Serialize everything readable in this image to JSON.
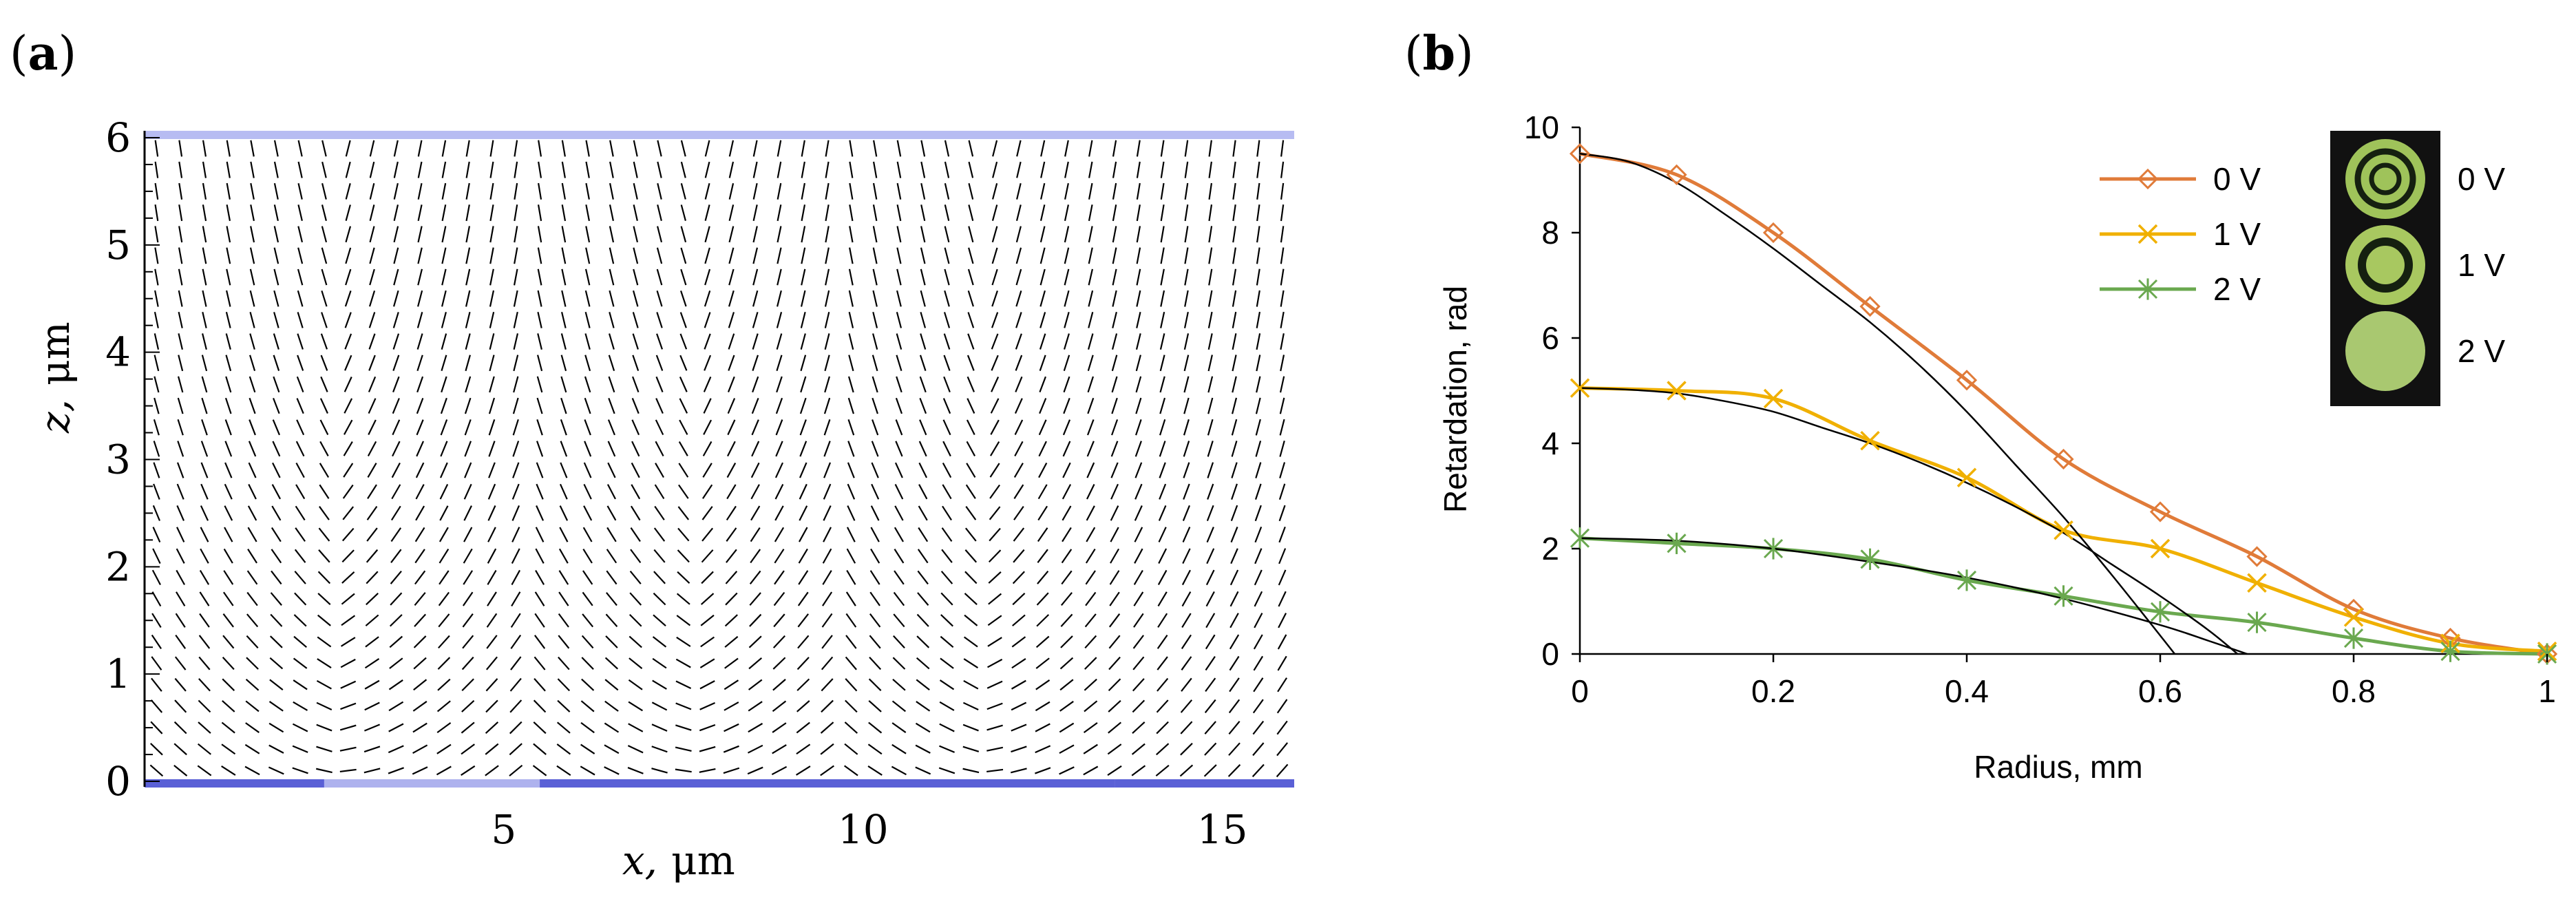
{
  "panel_a": {
    "label": "a"
  },
  "panel_b": {
    "label": "b"
  },
  "chart_data": [
    {
      "type": "vector-field",
      "title": "",
      "xlabel_var": "x,",
      "xlabel_unit": "μm",
      "ylabel_var": "z,",
      "ylabel_unit": "μm",
      "xlim": [
        0,
        16
      ],
      "ylim": [
        0,
        6
      ],
      "x_ticks": [
        {
          "value": 5,
          "label": "5"
        },
        {
          "value": 10,
          "label": "10"
        },
        {
          "value": 15,
          "label": "15"
        }
      ],
      "y_ticks": [
        {
          "value": 0,
          "label": "0"
        },
        {
          "value": 1,
          "label": "1"
        },
        {
          "value": 2,
          "label": "2"
        },
        {
          "value": 3,
          "label": "3"
        },
        {
          "value": 4,
          "label": "4"
        },
        {
          "value": 5,
          "label": "5"
        },
        {
          "value": 6,
          "label": "6"
        }
      ],
      "field": {
        "description": "director orientation field (line segments)",
        "columns": 48,
        "rows": 30,
        "defect_positions_x": [
          2.8,
          7.6,
          11.8
        ],
        "period_x": 8
      },
      "top_electrode_color": "#b7bcf2",
      "bottom_electrode_segments": [
        {
          "x0": 0,
          "x1": 2.5,
          "color": "#5a60d6"
        },
        {
          "x0": 2.5,
          "x1": 5.5,
          "color": "#aeb2ee"
        },
        {
          "x0": 5.5,
          "x1": 13.5,
          "color": "#5a60d6"
        },
        {
          "x0": 13.5,
          "x1": 16,
          "color": "#5a60d6"
        }
      ]
    },
    {
      "type": "line",
      "title": "",
      "xlabel": "Radius, mm",
      "ylabel": "Retardation, rad",
      "xlim": [
        0,
        1
      ],
      "ylim": [
        0,
        10
      ],
      "x_ticks": [
        {
          "value": 0,
          "label": "0"
        },
        {
          "value": 0.2,
          "label": "0.2"
        },
        {
          "value": 0.4,
          "label": "0.4"
        },
        {
          "value": 0.6,
          "label": "0.6"
        },
        {
          "value": 0.8,
          "label": "0.8"
        },
        {
          "value": 1,
          "label": "1"
        }
      ],
      "y_ticks": [
        {
          "value": 0,
          "label": "0"
        },
        {
          "value": 2,
          "label": "2"
        },
        {
          "value": 4,
          "label": "4"
        },
        {
          "value": 6,
          "label": "6"
        },
        {
          "value": 8,
          "label": "8"
        },
        {
          "value": 10,
          "label": "10"
        }
      ],
      "legend_position": "top-right",
      "series": [
        {
          "name": "0 V",
          "color": "#e07b39",
          "marker": "diamond",
          "x": [
            0,
            0.1,
            0.2,
            0.3,
            0.4,
            0.5,
            0.6,
            0.7,
            0.8,
            0.9,
            1.0
          ],
          "values": [
            9.5,
            9.1,
            8.0,
            6.6,
            5.2,
            3.7,
            2.7,
            1.85,
            0.85,
            0.3,
            0.0
          ]
        },
        {
          "name": "1 V",
          "color": "#f0b000",
          "marker": "x",
          "x": [
            0,
            0.1,
            0.2,
            0.3,
            0.4,
            0.5,
            0.6,
            0.7,
            0.8,
            0.9,
            1.0
          ],
          "values": [
            5.05,
            5.0,
            4.85,
            4.05,
            3.35,
            2.35,
            2.0,
            1.35,
            0.7,
            0.2,
            0.05
          ]
        },
        {
          "name": "2 V",
          "color": "#6aa84f",
          "marker": "asterisk",
          "x": [
            0,
            0.1,
            0.2,
            0.3,
            0.4,
            0.5,
            0.6,
            0.7,
            0.8,
            0.9,
            1.0
          ],
          "values": [
            2.2,
            2.1,
            2.0,
            1.8,
            1.4,
            1.1,
            0.8,
            0.6,
            0.3,
            0.05,
            0.0
          ]
        }
      ],
      "fit_curves": [
        {
          "name": "fit 0 V",
          "color": "#000000",
          "x": [
            0,
            0.05,
            0.1,
            0.15,
            0.2,
            0.25,
            0.3,
            0.35,
            0.4,
            0.45,
            0.5,
            0.55,
            0.6,
            0.615
          ],
          "values": [
            9.5,
            9.35,
            8.95,
            8.35,
            7.7,
            7.0,
            6.3,
            5.5,
            4.6,
            3.6,
            2.6,
            1.5,
            0.35,
            0.0
          ]
        },
        {
          "name": "fit 1 V",
          "color": "#000000",
          "x": [
            0,
            0.05,
            0.1,
            0.15,
            0.2,
            0.25,
            0.3,
            0.35,
            0.4,
            0.45,
            0.5,
            0.55,
            0.6,
            0.65,
            0.68
          ],
          "values": [
            5.05,
            5.02,
            4.95,
            4.8,
            4.6,
            4.3,
            4.0,
            3.65,
            3.25,
            2.8,
            2.3,
            1.7,
            1.1,
            0.45,
            0.0
          ]
        },
        {
          "name": "fit 2 V",
          "color": "#000000",
          "x": [
            0,
            0.1,
            0.2,
            0.3,
            0.4,
            0.5,
            0.6,
            0.65,
            0.69
          ],
          "values": [
            2.2,
            2.15,
            2.0,
            1.75,
            1.45,
            1.05,
            0.55,
            0.25,
            0.0
          ]
        }
      ],
      "inset": {
        "description": "microscope images of lens aperture at three voltages",
        "labels": [
          "0 V",
          "1 V",
          "2 V"
        ]
      }
    }
  ]
}
